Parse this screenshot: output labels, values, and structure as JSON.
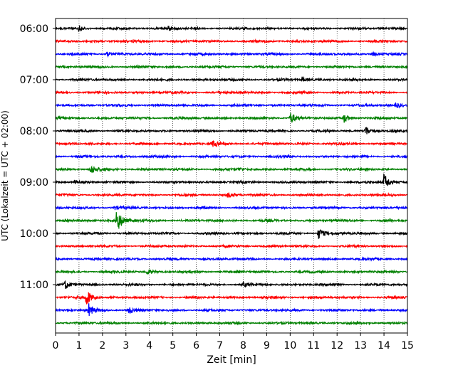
{
  "chart_data": {
    "type": "line",
    "title": "",
    "xlabel": "Zeit  [min]",
    "ylabel": "UTC (Lokalzeit = UTC + 02:00)",
    "xlim": [
      0,
      15
    ],
    "x_ticks": [
      "0",
      "1",
      "2",
      "3",
      "4",
      "5",
      "6",
      "7",
      "8",
      "9",
      "10",
      "11",
      "12",
      "13",
      "14",
      "15"
    ],
    "y_tick_labels": [
      "06:00",
      "07:00",
      "08:00",
      "09:00",
      "10:00",
      "11:00"
    ],
    "grid": "vertical dotted lines at each minute",
    "trace_interval_min": 15,
    "trace_color_cycle": [
      "#000000",
      "#ff0000",
      "#0000ff",
      "#008000"
    ],
    "series": [
      {
        "start": "06:00",
        "color": "#000000",
        "events": [
          {
            "t": 1.0,
            "amp": 0.35
          },
          {
            "t": 4.8,
            "amp": 0.3
          }
        ]
      },
      {
        "start": "06:15",
        "color": "#ff0000",
        "events": []
      },
      {
        "start": "06:30",
        "color": "#0000ff",
        "events": [
          {
            "t": 2.2,
            "amp": 0.3
          },
          {
            "t": 13.5,
            "amp": 0.3
          }
        ]
      },
      {
        "start": "06:45",
        "color": "#008000",
        "events": []
      },
      {
        "start": "07:00",
        "color": "#000000",
        "events": [
          {
            "t": 10.5,
            "amp": 0.35
          }
        ]
      },
      {
        "start": "07:15",
        "color": "#ff0000",
        "events": []
      },
      {
        "start": "07:30",
        "color": "#0000ff",
        "events": [
          {
            "t": 14.5,
            "amp": 0.4
          }
        ]
      },
      {
        "start": "07:45",
        "color": "#008000",
        "events": [
          {
            "t": 10.0,
            "amp": 0.9
          },
          {
            "t": 12.3,
            "amp": 0.6
          }
        ]
      },
      {
        "start": "08:00",
        "color": "#000000",
        "events": [
          {
            "t": 13.2,
            "amp": 0.7
          }
        ]
      },
      {
        "start": "08:15",
        "color": "#ff0000",
        "events": [
          {
            "t": 6.7,
            "amp": 0.4
          }
        ]
      },
      {
        "start": "08:30",
        "color": "#0000ff",
        "events": []
      },
      {
        "start": "08:45",
        "color": "#008000",
        "events": [
          {
            "t": 1.5,
            "amp": 0.7
          },
          {
            "t": 7.8,
            "amp": 0.25
          }
        ]
      },
      {
        "start": "09:00",
        "color": "#000000",
        "events": [
          {
            "t": 0.8,
            "amp": 0.3
          },
          {
            "t": 14.0,
            "amp": 1.3
          }
        ]
      },
      {
        "start": "09:15",
        "color": "#ff0000",
        "events": [
          {
            "t": 7.3,
            "amp": 0.4
          }
        ]
      },
      {
        "start": "09:30",
        "color": "#0000ff",
        "events": [
          {
            "t": 2.5,
            "amp": 0.3
          }
        ]
      },
      {
        "start": "09:45",
        "color": "#008000",
        "events": [
          {
            "t": 2.6,
            "amp": 2.1
          }
        ]
      },
      {
        "start": "10:00",
        "color": "#000000",
        "events": [
          {
            "t": 11.2,
            "amp": 0.8
          }
        ]
      },
      {
        "start": "10:15",
        "color": "#ff0000",
        "events": []
      },
      {
        "start": "10:30",
        "color": "#0000ff",
        "events": []
      },
      {
        "start": "10:45",
        "color": "#008000",
        "events": [
          {
            "t": 3.9,
            "amp": 0.35
          }
        ]
      },
      {
        "start": "11:00",
        "color": "#000000",
        "events": [
          {
            "t": 0.4,
            "amp": 0.6
          },
          {
            "t": 8.0,
            "amp": 0.3
          }
        ]
      },
      {
        "start": "11:15",
        "color": "#ff0000",
        "events": [
          {
            "t": 1.3,
            "amp": 1.3
          }
        ]
      },
      {
        "start": "11:30",
        "color": "#0000ff",
        "events": [
          {
            "t": 1.4,
            "amp": 0.9
          },
          {
            "t": 3.1,
            "amp": 0.6
          }
        ]
      },
      {
        "start": "11:45",
        "color": "#008000",
        "events": []
      }
    ]
  }
}
